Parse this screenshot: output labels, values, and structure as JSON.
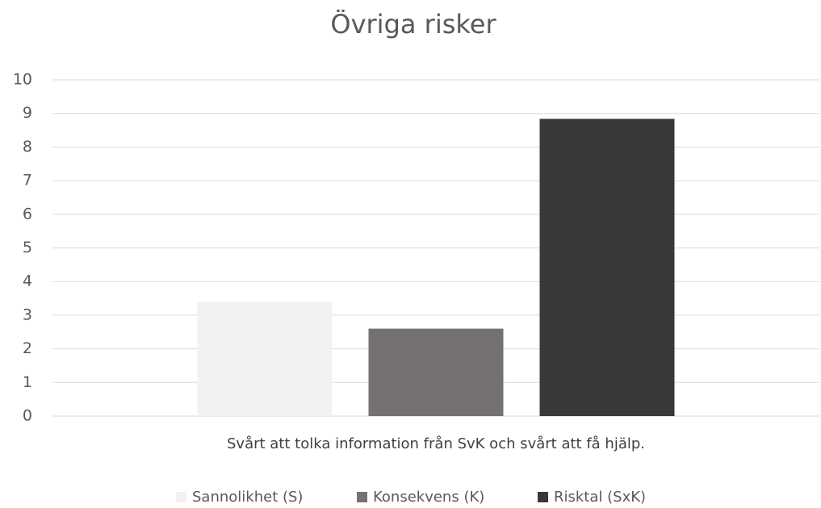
{
  "chart_data": {
    "type": "bar",
    "title": "Övriga risker",
    "categories": [
      "Svårt att tolka information från SvK och svårt att få hjälp."
    ],
    "series": [
      {
        "name": "Sannolikhet (S)",
        "color": "#f2f2f2",
        "values": [
          3.4
        ]
      },
      {
        "name": "Konsekvens (K)",
        "color": "#767171",
        "values": [
          2.6
        ]
      },
      {
        "name": "Risktal (SxK)",
        "color": "#3b3838",
        "values": [
          8.84
        ]
      }
    ],
    "ylim": [
      0,
      10
    ],
    "yticks": [
      0,
      1,
      2,
      3,
      4,
      5,
      6,
      7,
      8,
      9,
      10
    ],
    "grid": true,
    "legend": "bottom"
  }
}
